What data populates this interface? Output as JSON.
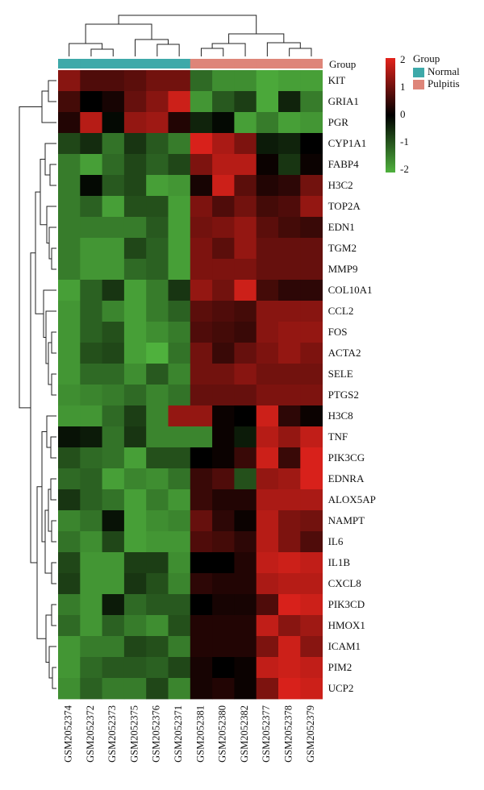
{
  "chart_data": {
    "type": "heatmap",
    "title": "",
    "columns": [
      "GSM2052374",
      "GSM2052372",
      "GSM2052373",
      "GSM2052375",
      "GSM2052376",
      "GSM2052371",
      "GSM2052381",
      "GSM2052380",
      "GSM2052382",
      "GSM2052377",
      "GSM2052378",
      "GSM2052379"
    ],
    "column_groups": [
      "Normal",
      "Normal",
      "Normal",
      "Normal",
      "Normal",
      "Normal",
      "Pulpitis",
      "Pulpitis",
      "Pulpitis",
      "Pulpitis",
      "Pulpitis",
      "Pulpitis"
    ],
    "rows": [
      "KIT",
      "GRIA1",
      "PGR",
      "CYP1A1",
      "FABP4",
      "H3C2",
      "TOP2A",
      "EDN1",
      "TGM2",
      "MMP9",
      "COL10A1",
      "CCL2",
      "FOS",
      "ACTA2",
      "SELE",
      "PTGS2",
      "H3C8",
      "TNF",
      "PIK3CG",
      "EDNRA",
      "ALOX5AP",
      "NAMPT",
      "IL6",
      "IL1B",
      "CXCL8",
      "PIK3CD",
      "HMOX1",
      "ICAM1",
      "PIM2",
      "UCP2"
    ],
    "values": [
      [
        1.2,
        0.7,
        0.7,
        0.8,
        1.0,
        1.0,
        -1.2,
        -1.6,
        -1.6,
        -1.9,
        -1.8,
        -1.8
      ],
      [
        0.6,
        0.0,
        0.2,
        0.9,
        1.2,
        1.8,
        -1.7,
        -1.0,
        -0.7,
        -1.9,
        -0.4,
        -1.4
      ],
      [
        0.3,
        1.6,
        -0.1,
        1.3,
        1.4,
        0.3,
        -0.4,
        -0.1,
        -1.8,
        -1.4,
        -1.8,
        -1.7
      ],
      [
        -0.8,
        -0.5,
        -1.3,
        -0.6,
        -1.0,
        -1.4,
        1.9,
        1.5,
        1.1,
        -0.3,
        -0.4,
        0.0
      ],
      [
        -1.4,
        -1.8,
        -1.2,
        -0.8,
        -1.1,
        -0.8,
        1.1,
        1.6,
        1.6,
        0.1,
        -0.6,
        0.1
      ],
      [
        -1.4,
        -0.1,
        -1.0,
        -0.8,
        -1.8,
        -1.7,
        0.2,
        1.8,
        0.8,
        0.3,
        0.4,
        1.0
      ],
      [
        -1.4,
        -1.1,
        -1.8,
        -0.9,
        -0.9,
        -1.8,
        1.1,
        0.7,
        1.0,
        0.6,
        0.7,
        1.3
      ],
      [
        -1.4,
        -1.4,
        -1.4,
        -1.4,
        -1.0,
        -1.8,
        1.0,
        1.1,
        1.3,
        0.8,
        0.6,
        0.5
      ],
      [
        -1.4,
        -1.7,
        -1.7,
        -0.8,
        -1.1,
        -1.8,
        1.1,
        0.8,
        1.3,
        0.9,
        0.9,
        0.9
      ],
      [
        -1.4,
        -1.7,
        -1.7,
        -1.2,
        -1.1,
        -1.8,
        1.1,
        1.1,
        1.1,
        0.9,
        0.9,
        0.9
      ],
      [
        -1.8,
        -1.1,
        -0.6,
        -1.8,
        -1.4,
        -0.6,
        1.3,
        1.0,
        1.8,
        0.6,
        0.4,
        0.4
      ],
      [
        -1.7,
        -1.1,
        -1.5,
        -1.8,
        -1.4,
        -1.1,
        0.8,
        0.7,
        0.6,
        1.2,
        1.2,
        1.2
      ],
      [
        -1.7,
        -1.1,
        -0.9,
        -1.8,
        -1.6,
        -1.4,
        0.7,
        0.6,
        0.5,
        1.2,
        1.3,
        1.3
      ],
      [
        -1.7,
        -0.9,
        -0.8,
        -1.8,
        -2.0,
        -1.3,
        1.0,
        0.5,
        0.9,
        1.1,
        1.3,
        1.1
      ],
      [
        -1.7,
        -1.2,
        -1.2,
        -1.6,
        -1.0,
        -1.5,
        1.0,
        1.0,
        1.2,
        1.0,
        1.0,
        1.0
      ],
      [
        -1.6,
        -1.5,
        -1.4,
        -1.2,
        -1.5,
        -1.3,
        0.9,
        0.9,
        0.9,
        1.1,
        1.1,
        1.1
      ],
      [
        -1.7,
        -1.7,
        -1.2,
        -0.7,
        -1.5,
        1.3,
        1.3,
        0.1,
        0.0,
        1.8,
        0.4,
        0.1
      ],
      [
        -0.2,
        -0.3,
        -1.3,
        -0.6,
        -1.5,
        -1.5,
        -1.5,
        0.1,
        -0.3,
        1.6,
        1.3,
        1.7
      ],
      [
        -0.9,
        -1.2,
        -1.3,
        -1.8,
        -0.9,
        -0.9,
        0.0,
        0.1,
        0.5,
        1.8,
        0.5,
        1.9
      ],
      [
        -1.2,
        -1.1,
        -1.8,
        -1.5,
        -1.6,
        -1.3,
        0.5,
        0.7,
        -0.9,
        1.3,
        1.4,
        1.9
      ],
      [
        -0.6,
        -1.1,
        -1.3,
        -1.8,
        -1.4,
        -1.7,
        0.5,
        0.3,
        0.3,
        1.5,
        1.5,
        1.5
      ],
      [
        -1.5,
        -1.3,
        -0.2,
        -1.8,
        -1.6,
        -1.5,
        0.9,
        0.4,
        0.1,
        1.6,
        1.1,
        1.0
      ],
      [
        -1.3,
        -1.6,
        -0.8,
        -1.8,
        -1.7,
        -1.7,
        0.7,
        0.6,
        0.4,
        1.6,
        1.1,
        0.7
      ],
      [
        -0.8,
        -1.7,
        -1.7,
        -0.7,
        -0.7,
        -1.6,
        0.0,
        0.0,
        0.3,
        1.7,
        1.8,
        1.7
      ],
      [
        -0.7,
        -1.7,
        -1.7,
        -0.6,
        -0.9,
        -1.5,
        0.4,
        0.3,
        0.3,
        1.5,
        1.6,
        1.6
      ],
      [
        -1.4,
        -1.7,
        -0.3,
        -1.2,
        -1.0,
        -1.0,
        0.0,
        0.2,
        0.2,
        0.7,
        1.9,
        1.8
      ],
      [
        -1.2,
        -1.7,
        -1.1,
        -1.4,
        -1.6,
        -0.9,
        0.3,
        0.3,
        0.3,
        1.7,
        1.2,
        1.4
      ],
      [
        -1.7,
        -1.4,
        -1.4,
        -0.8,
        -0.9,
        -1.4,
        0.3,
        0.3,
        0.3,
        1.1,
        1.8,
        1.2
      ],
      [
        -1.7,
        -1.2,
        -1.0,
        -1.0,
        -1.1,
        -0.8,
        0.2,
        0.0,
        0.1,
        1.7,
        1.8,
        1.7
      ],
      [
        -1.6,
        -1.1,
        -1.4,
        -1.4,
        -0.8,
        -1.5,
        0.2,
        0.3,
        0.1,
        1.1,
        1.9,
        1.8
      ]
    ],
    "color_scale": {
      "min": -2,
      "mid": 0,
      "max": 2,
      "low_color": "#4fb13d",
      "mid_color": "#000000",
      "high_color": "#e3231c"
    },
    "colorbar_ticks": [
      "2",
      "1",
      "0",
      "-1",
      "-2"
    ],
    "legend": {
      "title": "Group",
      "items": [
        {
          "name": "Normal",
          "color": "#3ea9a9"
        },
        {
          "name": "Pulpitis",
          "color": "#de8579"
        }
      ]
    },
    "annotation_label": "Group",
    "row_dendrogram": true,
    "column_dendrogram": true
  }
}
